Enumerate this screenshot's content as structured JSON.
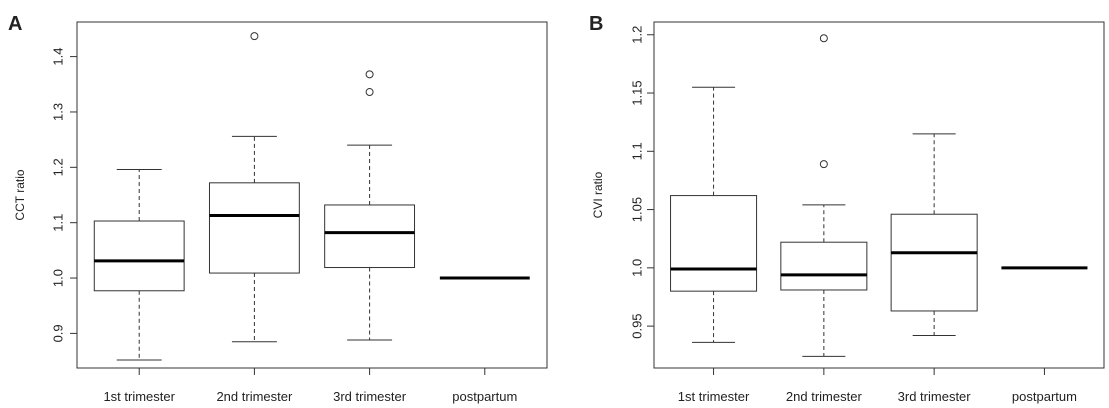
{
  "chart_data": [
    {
      "type": "boxplot",
      "panel_label": "A",
      "ylabel": "CCT ratio",
      "xlabel": "",
      "categories": [
        "1st trimester",
        "2nd trimester",
        "3rd trimester",
        "postpartum"
      ],
      "ylim": [
        0.85,
        1.45
      ],
      "yticks": [
        0.9,
        1.0,
        1.1,
        1.2,
        1.3,
        1.4
      ],
      "grid": false,
      "boxes": [
        {
          "whisker_low": 0.852,
          "q1": 0.977,
          "median": 1.031,
          "q3": 1.103,
          "whisker_high": 1.196,
          "outliers": []
        },
        {
          "whisker_low": 0.885,
          "q1": 1.009,
          "median": 1.113,
          "q3": 1.172,
          "whisker_high": 1.256,
          "outliers": [
            1.437
          ]
        },
        {
          "whisker_low": 0.888,
          "q1": 1.019,
          "median": 1.082,
          "q3": 1.132,
          "whisker_high": 1.24,
          "outliers": [
            1.336,
            1.368
          ]
        },
        {
          "whisker_low": 1.0,
          "q1": 1.0,
          "median": 1.0,
          "q3": 1.0,
          "whisker_high": 1.0,
          "outliers": []
        }
      ]
    },
    {
      "type": "boxplot",
      "panel_label": "B",
      "ylabel": "CVI ratio",
      "xlabel": "",
      "categories": [
        "1st trimester",
        "2nd trimester",
        "3rd trimester",
        "postpartum"
      ],
      "ylim": [
        0.92,
        1.205
      ],
      "yticks": [
        0.95,
        1.0,
        1.05,
        1.1,
        1.15,
        1.2
      ],
      "grid": false,
      "boxes": [
        {
          "whisker_low": 0.936,
          "q1": 0.98,
          "median": 0.999,
          "q3": 1.062,
          "whisker_high": 1.155,
          "outliers": []
        },
        {
          "whisker_low": 0.924,
          "q1": 0.981,
          "median": 0.994,
          "q3": 1.022,
          "whisker_high": 1.054,
          "outliers": [
            1.089,
            1.197
          ]
        },
        {
          "whisker_low": 0.942,
          "q1": 0.963,
          "median": 1.013,
          "q3": 1.046,
          "whisker_high": 1.115,
          "outliers": []
        },
        {
          "whisker_low": 1.0,
          "q1": 1.0,
          "median": 1.0,
          "q3": 1.0,
          "whisker_high": 1.0,
          "outliers": []
        }
      ]
    }
  ]
}
